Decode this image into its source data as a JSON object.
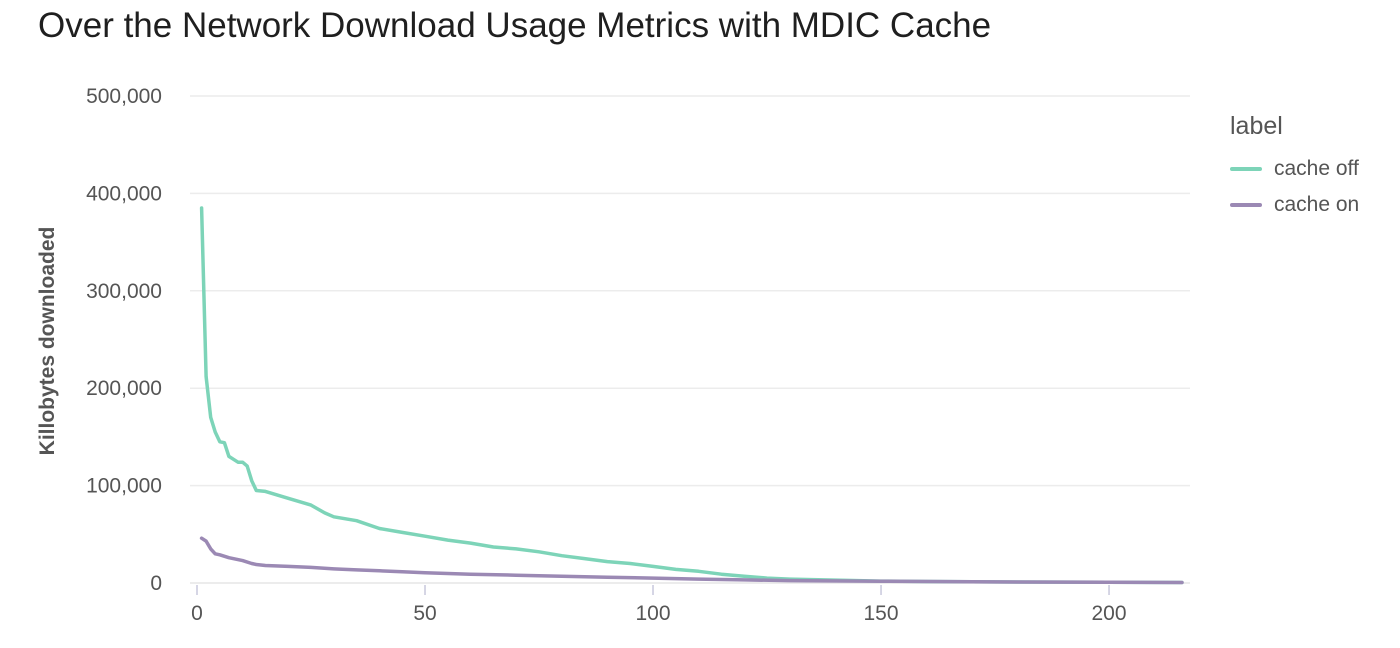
{
  "chart_data": {
    "type": "line",
    "title": "Over the Network Download Usage Metrics with MDIC Cache",
    "xlabel": "",
    "ylabel": "Killobytes downloaded",
    "xlim": [
      0,
      216
    ],
    "ylim": [
      0,
      500000
    ],
    "xticks": [
      0,
      50,
      100,
      150,
      200
    ],
    "xtick_labels": [
      "0",
      "50",
      "100",
      "150",
      "200"
    ],
    "yticks": [
      0,
      100000,
      200000,
      300000,
      400000,
      500000
    ],
    "ytick_labels": [
      "0",
      "100,000",
      "200,000",
      "300,000",
      "400,000",
      "500,000"
    ],
    "grid": "horizontal",
    "legend": {
      "title": "label",
      "position": "right"
    },
    "series": [
      {
        "name": "cache off",
        "color": "#7dd4b8",
        "points": [
          [
            1,
            385000
          ],
          [
            2,
            212000
          ],
          [
            3,
            170000
          ],
          [
            4,
            155000
          ],
          [
            5,
            145000
          ],
          [
            6,
            144000
          ],
          [
            7,
            130000
          ],
          [
            8,
            127000
          ],
          [
            9,
            124000
          ],
          [
            10,
            124000
          ],
          [
            11,
            120000
          ],
          [
            12,
            105000
          ],
          [
            13,
            95000
          ],
          [
            15,
            94000
          ],
          [
            20,
            87000
          ],
          [
            25,
            80000
          ],
          [
            28,
            72000
          ],
          [
            30,
            68000
          ],
          [
            35,
            64000
          ],
          [
            40,
            56000
          ],
          [
            45,
            52000
          ],
          [
            50,
            48000
          ],
          [
            55,
            44000
          ],
          [
            60,
            41000
          ],
          [
            65,
            37000
          ],
          [
            70,
            35000
          ],
          [
            75,
            32000
          ],
          [
            80,
            28000
          ],
          [
            85,
            25000
          ],
          [
            90,
            22000
          ],
          [
            95,
            20000
          ],
          [
            100,
            17000
          ],
          [
            105,
            14000
          ],
          [
            110,
            12000
          ],
          [
            115,
            9000
          ],
          [
            120,
            7000
          ],
          [
            125,
            5000
          ],
          [
            130,
            4000
          ],
          [
            140,
            3000
          ],
          [
            150,
            2000
          ],
          [
            160,
            1500
          ],
          [
            180,
            1000
          ],
          [
            200,
            700
          ],
          [
            216,
            500
          ]
        ]
      },
      {
        "name": "cache on",
        "color": "#9b89b4",
        "points": [
          [
            1,
            46000
          ],
          [
            2,
            43000
          ],
          [
            3,
            35000
          ],
          [
            4,
            30000
          ],
          [
            5,
            29000
          ],
          [
            7,
            26000
          ],
          [
            10,
            23000
          ],
          [
            12,
            20000
          ],
          [
            13,
            19000
          ],
          [
            15,
            18000
          ],
          [
            20,
            17000
          ],
          [
            25,
            16000
          ],
          [
            30,
            14500
          ],
          [
            35,
            13500
          ],
          [
            40,
            12500
          ],
          [
            45,
            11500
          ],
          [
            50,
            10500
          ],
          [
            60,
            9000
          ],
          [
            70,
            8000
          ],
          [
            80,
            7000
          ],
          [
            90,
            6000
          ],
          [
            100,
            5000
          ],
          [
            110,
            4000
          ],
          [
            120,
            3200
          ],
          [
            130,
            2500
          ],
          [
            150,
            1800
          ],
          [
            170,
            1200
          ],
          [
            200,
            700
          ],
          [
            216,
            500
          ]
        ]
      }
    ]
  }
}
